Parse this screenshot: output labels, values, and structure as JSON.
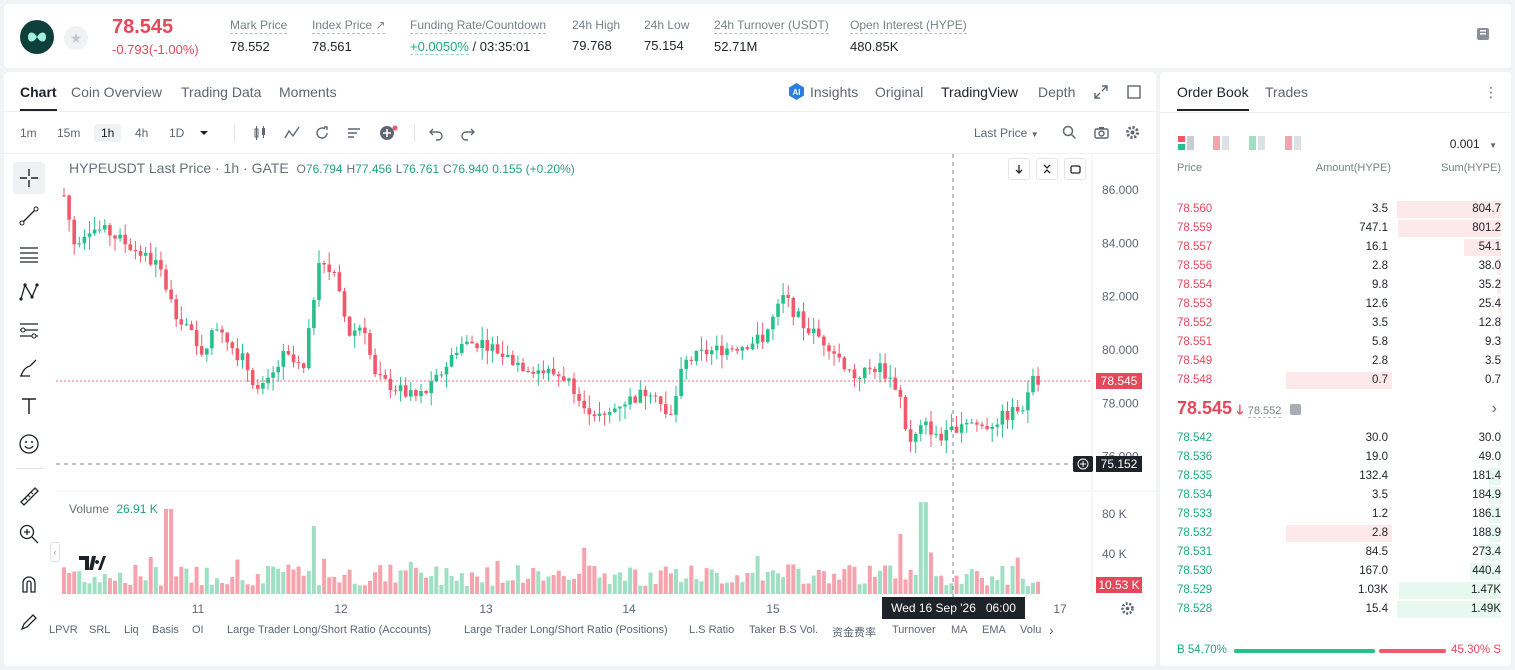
{
  "header": {
    "last_price": "78.545",
    "change": "-0.793(-1.00%)",
    "stats": [
      {
        "label": "Mark Price",
        "value": "78.552"
      },
      {
        "label": "Index Price ↗",
        "value": "78.561"
      },
      {
        "label": "Funding Rate/Countdown",
        "value": "+0.0050%",
        "value2": "/ 03:35:01"
      },
      {
        "label": "24h High",
        "value": "79.768"
      },
      {
        "label": "24h Low",
        "value": "75.154"
      },
      {
        "label": "24h Turnover (USDT)",
        "value": "52.71M"
      },
      {
        "label": "Open Interest (HYPE)",
        "value": "480.85K"
      }
    ]
  },
  "chart_tabs": [
    "Chart",
    "Coin Overview",
    "Trading Data",
    "Moments"
  ],
  "view_tabs": [
    "Insights",
    "Original",
    "TradingView",
    "Depth"
  ],
  "timeframes": [
    "1m",
    "15m",
    "1h",
    "4h",
    "1D"
  ],
  "price_type": "Last Price",
  "legend": {
    "symbol": "HYPEUSDT Last Price · 1h · GATE",
    "o_label": "O",
    "o": "76.794",
    "h_label": "H",
    "h": "77.456",
    "l_label": "L",
    "l": "76.761",
    "c_label": "C",
    "c": "76.940",
    "chg": "0.155 (+0.20%)"
  },
  "volume_label": "Volume",
  "volume_value": "26.91 K",
  "price_axis": [
    "86.000",
    "84.000",
    "82.000",
    "80.000",
    "78.000",
    "76.000"
  ],
  "volume_axis": [
    "80 K",
    "40 K"
  ],
  "last_price_tag": "78.545",
  "cursor_price_tag": "75.152",
  "last_volume_tag": "10.53 K",
  "time_axis": [
    "11",
    "12",
    "13",
    "14",
    "15",
    "17"
  ],
  "cursor_time": "Wed 16 Sep '26   06:00",
  "indicators": [
    "LPVR",
    "SRL",
    "Liq",
    "Basis",
    "OI",
    "Large Trader Long/Short Ratio (Accounts)",
    "Large Trader Long/Short Ratio (Positions)",
    "L.S Ratio",
    "Taker B.S Vol.",
    "资金费率",
    "Turnover",
    "MA",
    "EMA",
    "Volu"
  ],
  "colors": {
    "up": "#26c08a",
    "down": "#f0596a",
    "up_vol": "#9fe0c5",
    "down_vol": "#f5a3ad"
  },
  "orderbook": {
    "tabs": [
      "Order Book",
      "Trades"
    ],
    "precision": "0.001",
    "headers": [
      "Price",
      "Amount(HYPE)",
      "Sum(HYPE)"
    ],
    "asks": [
      {
        "price": "78.560",
        "amount": "3.5",
        "sum": "804.7",
        "depth": 1.0,
        "amt_frac": 0.0
      },
      {
        "price": "78.559",
        "amount": "747.1",
        "sum": "801.2",
        "depth": 0.995,
        "amt_frac": 0.0
      },
      {
        "price": "78.557",
        "amount": "16.1",
        "sum": "54.1",
        "depth": 0.36,
        "amt_frac": 0.0
      },
      {
        "price": "78.556",
        "amount": "2.8",
        "sum": "38.0",
        "depth": 0.04,
        "amt_frac": 0.0
      },
      {
        "price": "78.554",
        "amount": "9.8",
        "sum": "35.2",
        "depth": 0.04,
        "amt_frac": 0.0
      },
      {
        "price": "78.553",
        "amount": "12.6",
        "sum": "25.4",
        "depth": 0.03,
        "amt_frac": 0.0
      },
      {
        "price": "78.552",
        "amount": "3.5",
        "sum": "12.8",
        "depth": 0.02,
        "amt_frac": 0.0
      },
      {
        "price": "78.551",
        "amount": "5.8",
        "sum": "9.3",
        "depth": 0.01,
        "amt_frac": 0.0
      },
      {
        "price": "78.549",
        "amount": "2.8",
        "sum": "3.5",
        "depth": 0.005,
        "amt_frac": 0.0
      },
      {
        "price": "78.548",
        "amount": "0.7",
        "sum": "0.7",
        "depth": 0.0,
        "amt_frac": 0.98
      }
    ],
    "mid_price": "78.545",
    "mid_mark": "78.552",
    "bids": [
      {
        "price": "78.542",
        "amount": "30.0",
        "sum": "30.0",
        "depth": 0.02,
        "amt_frac": 0.0
      },
      {
        "price": "78.536",
        "amount": "19.0",
        "sum": "49.0",
        "depth": 0.03,
        "amt_frac": 0.0
      },
      {
        "price": "78.535",
        "amount": "132.4",
        "sum": "181.4",
        "depth": 0.12,
        "amt_frac": 0.0
      },
      {
        "price": "78.534",
        "amount": "3.5",
        "sum": "184.9",
        "depth": 0.12,
        "amt_frac": 0.0
      },
      {
        "price": "78.533",
        "amount": "1.2",
        "sum": "186.1",
        "depth": 0.12,
        "amt_frac": 0.0
      },
      {
        "price": "78.532",
        "amount": "2.8",
        "sum": "188.9",
        "depth": 0.12,
        "amt_frac": 0.98
      },
      {
        "price": "78.531",
        "amount": "84.5",
        "sum": "273.4",
        "depth": 0.18,
        "amt_frac": 0.0
      },
      {
        "price": "78.530",
        "amount": "167.0",
        "sum": "440.4",
        "depth": 0.3,
        "amt_frac": 0.0
      },
      {
        "price": "78.529",
        "amount": "1.03K",
        "sum": "1.47K",
        "depth": 0.98,
        "amt_frac": 0.0
      },
      {
        "price": "78.528",
        "amount": "15.4",
        "sum": "1.49K",
        "depth": 1.0,
        "amt_frac": 0.0
      }
    ],
    "buy_ratio": "54.70%",
    "sell_ratio": "45.30%",
    "buy_label": "B",
    "sell_label": "S",
    "buy_fraction": 0.547
  }
}
